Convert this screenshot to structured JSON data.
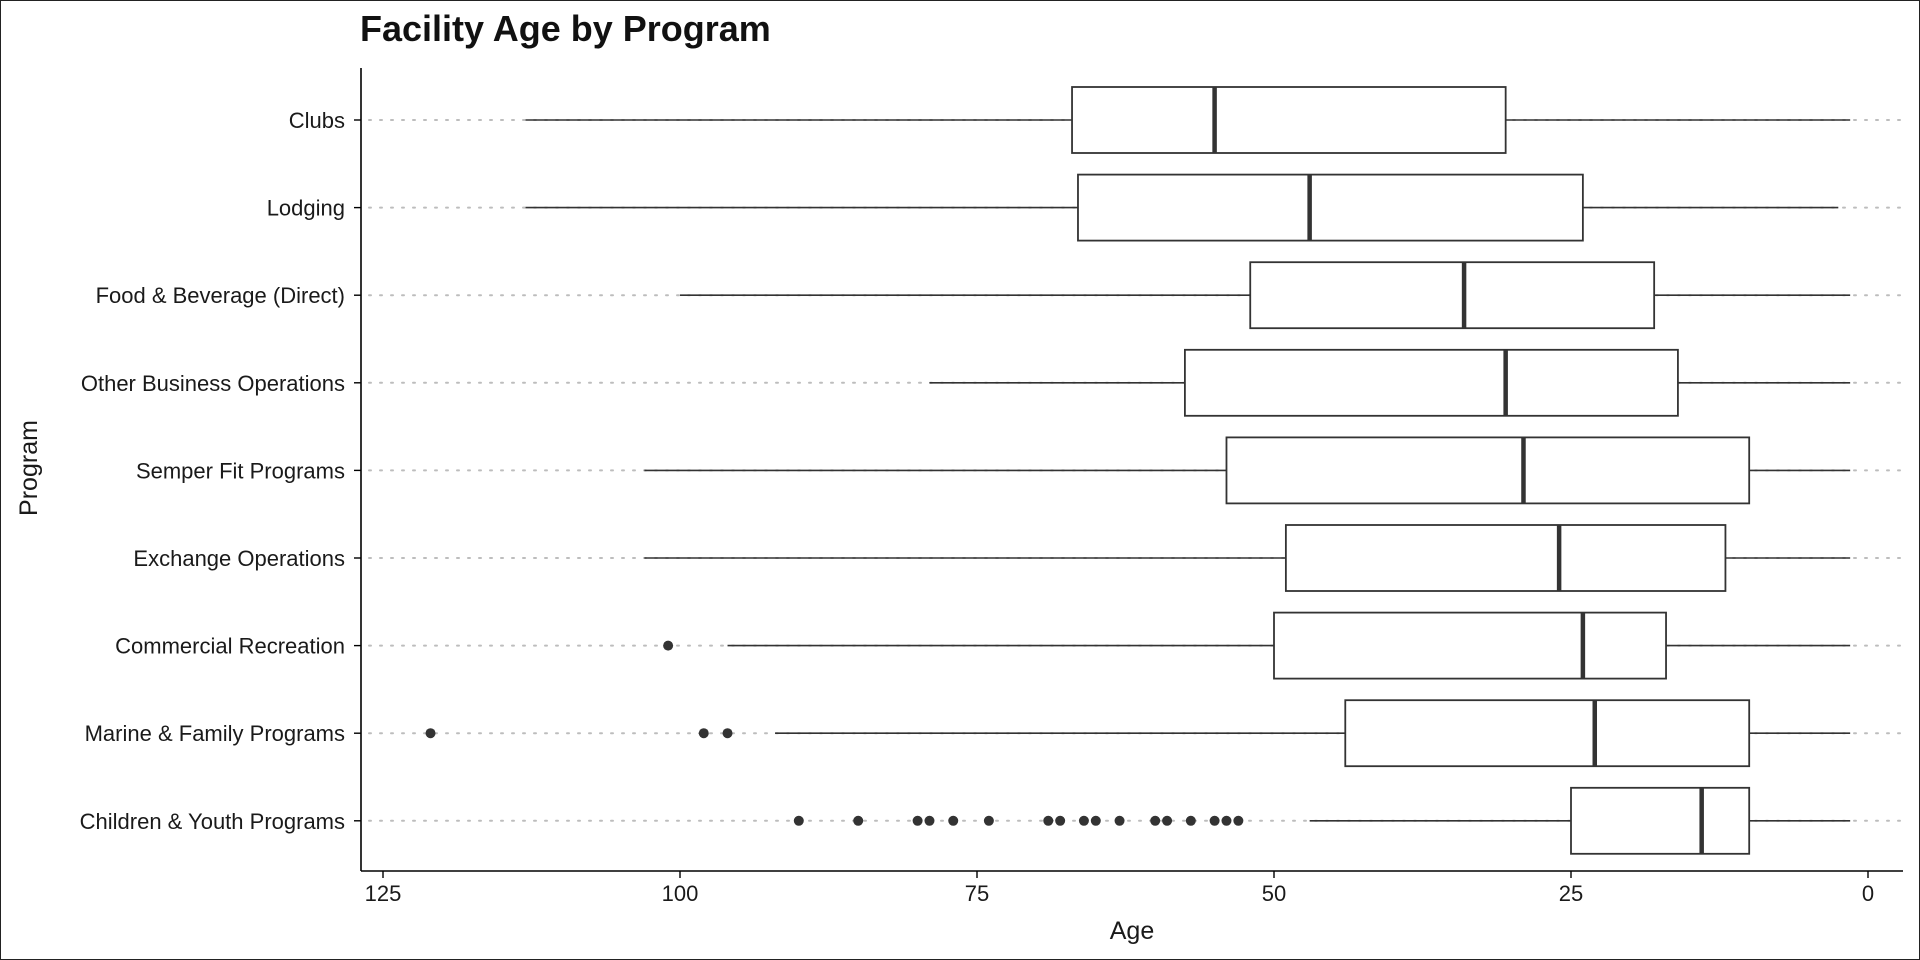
{
  "chart_data": {
    "type": "boxplot",
    "orientation": "horizontal",
    "title": "Facility Age by Program",
    "xlabel": "Age",
    "ylabel": "Program",
    "x_reversed": true,
    "xlim": [
      0,
      126
    ],
    "xticks": [
      125,
      100,
      75,
      50,
      25,
      0
    ],
    "grid": "dotted horizontal lines at each category",
    "legend": "none",
    "colors": {
      "box_fill": "#ffffff",
      "stroke": "#333333",
      "grid": "#bdbdbd",
      "outlier": "#333333"
    },
    "categories": [
      "Clubs",
      "Lodging",
      "Food & Beverage (Direct)",
      "Other Business Operations",
      "Semper Fit Programs",
      "Exchange Operations",
      "Commercial Recreation",
      "Marine & Family Programs",
      "Children & Youth Programs"
    ],
    "boxes": [
      {
        "name": "Clubs",
        "whisker_low": 1.5,
        "q1": 30.5,
        "median": 55,
        "q3": 67,
        "whisker_high": 113,
        "outliers": []
      },
      {
        "name": "Lodging",
        "whisker_low": 2.5,
        "q1": 24,
        "median": 47,
        "q3": 66.5,
        "whisker_high": 113,
        "outliers": []
      },
      {
        "name": "Food & Beverage (Direct)",
        "whisker_low": 1.5,
        "q1": 18,
        "median": 34,
        "q3": 52,
        "whisker_high": 100,
        "outliers": []
      },
      {
        "name": "Other Business Operations",
        "whisker_low": 1.5,
        "q1": 16,
        "median": 30.5,
        "q3": 57.5,
        "whisker_high": 79,
        "outliers": []
      },
      {
        "name": "Semper Fit Programs",
        "whisker_low": 1.5,
        "q1": 10,
        "median": 29,
        "q3": 54,
        "whisker_high": 103,
        "outliers": []
      },
      {
        "name": "Exchange Operations",
        "whisker_low": 1.5,
        "q1": 12,
        "median": 26,
        "q3": 49,
        "whisker_high": 103,
        "outliers": []
      },
      {
        "name": "Commercial Recreation",
        "whisker_low": 1.5,
        "q1": 17,
        "median": 24,
        "q3": 50,
        "whisker_high": 96,
        "outliers": [
          101
        ]
      },
      {
        "name": "Marine & Family Programs",
        "whisker_low": 1.5,
        "q1": 10,
        "median": 23,
        "q3": 44,
        "whisker_high": 92,
        "outliers": [
          121,
          98,
          96
        ]
      },
      {
        "name": "Children & Youth Programs",
        "whisker_low": 1.5,
        "q1": 10,
        "median": 14,
        "q3": 25,
        "whisker_high": 47,
        "outliers": [
          90,
          85,
          80,
          79,
          77,
          74,
          69,
          68,
          66,
          65,
          63,
          60,
          59,
          57,
          55,
          54,
          53
        ]
      }
    ]
  }
}
